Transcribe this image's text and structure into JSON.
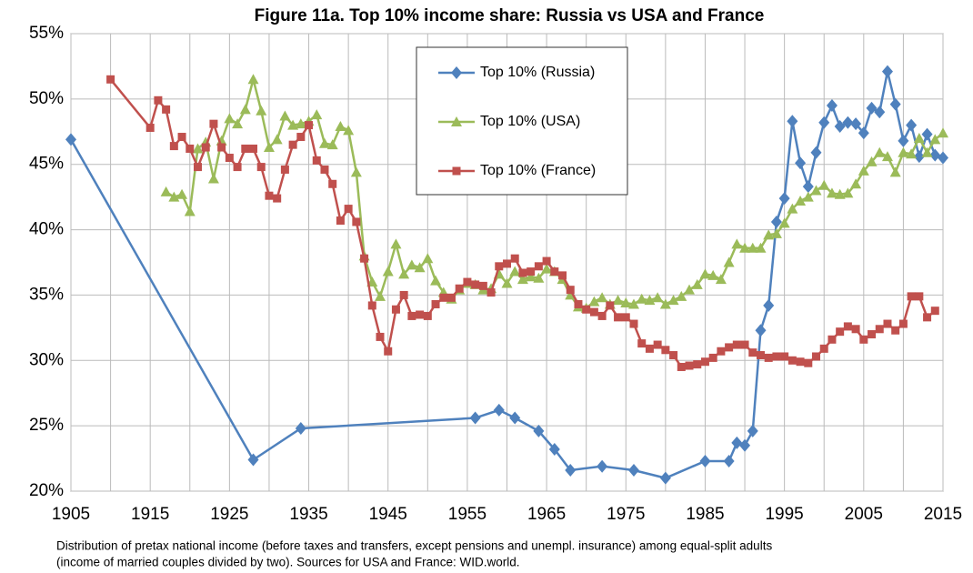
{
  "chart_data": {
    "type": "line",
    "title": "Figure 11a. Top 10% income share: Russia vs USA and France",
    "notes": [
      "Distribution of pretax national income (before taxes and transfers, except pensions and unempl. insurance) among equal-split adults",
      "(income of married couples divided by two). Sources for USA and France: WID.world."
    ],
    "xlim": [
      1905,
      2015
    ],
    "xticks": [
      1905,
      1915,
      1925,
      1935,
      1945,
      1955,
      1965,
      1975,
      1985,
      1995,
      2005,
      2015
    ],
    "x_minor_ticks": [
      1910,
      1920,
      1930,
      1940,
      1950,
      1960,
      1970,
      1980,
      1990,
      2000,
      2010
    ],
    "ylim": [
      20,
      55
    ],
    "yticks": [
      {
        "value": 20,
        "label": "20%"
      },
      {
        "value": 25,
        "label": "25%"
      },
      {
        "value": 30,
        "label": "30%"
      },
      {
        "value": 35,
        "label": "35%"
      },
      {
        "value": 40,
        "label": "40%"
      },
      {
        "value": 45,
        "label": "45%"
      },
      {
        "value": 50,
        "label": "50%"
      },
      {
        "value": 55,
        "label": "55%"
      }
    ],
    "grid": true,
    "legend": "upper center",
    "series": [
      {
        "name": "Top 10% (Russia)",
        "color": "#4f81bd",
        "marker": "diamond",
        "x": [
          1905,
          1928,
          1934,
          1956,
          1959,
          1961,
          1964,
          1966,
          1968,
          1972,
          1976,
          1980,
          1985,
          1988,
          1989,
          1990,
          1991,
          1992,
          1993,
          1994,
          1995,
          1996,
          1997,
          1998,
          1999,
          2000,
          2001,
          2002,
          2003,
          2004,
          2005,
          2006,
          2007,
          2008,
          2009,
          2010,
          2011,
          2012,
          2013,
          2014,
          2015
        ],
        "values": [
          46.9,
          22.4,
          24.8,
          25.6,
          26.2,
          25.6,
          24.6,
          23.2,
          21.6,
          21.9,
          21.6,
          21.0,
          22.3,
          22.3,
          23.7,
          23.5,
          24.6,
          32.3,
          34.2,
          40.6,
          42.4,
          48.3,
          45.1,
          43.3,
          45.9,
          48.2,
          49.5,
          47.9,
          48.2,
          48.1,
          47.4,
          49.3,
          49.0,
          52.1,
          49.6,
          46.8,
          48.0,
          45.6,
          47.3,
          45.7,
          45.5
        ]
      },
      {
        "name": "Top 10% (USA)",
        "color": "#9bbb59",
        "marker": "triangle",
        "x": [
          1917,
          1918,
          1919,
          1920,
          1921,
          1922,
          1923,
          1924,
          1925,
          1926,
          1927,
          1928,
          1929,
          1930,
          1931,
          1932,
          1933,
          1934,
          1935,
          1936,
          1937,
          1938,
          1939,
          1940,
          1941,
          1942,
          1943,
          1944,
          1945,
          1946,
          1947,
          1948,
          1949,
          1950,
          1951,
          1952,
          1953,
          1954,
          1955,
          1956,
          1957,
          1958,
          1959,
          1960,
          1961,
          1962,
          1963,
          1964,
          1965,
          1966,
          1967,
          1968,
          1969,
          1970,
          1971,
          1972,
          1973,
          1974,
          1975,
          1976,
          1977,
          1978,
          1979,
          1980,
          1981,
          1982,
          1983,
          1984,
          1985,
          1986,
          1987,
          1988,
          1989,
          1990,
          1991,
          1992,
          1993,
          1994,
          1995,
          1996,
          1997,
          1998,
          1999,
          2000,
          2001,
          2002,
          2003,
          2004,
          2005,
          2006,
          2007,
          2008,
          2009,
          2010,
          2011,
          2012,
          2013,
          2014,
          2015
        ],
        "values": [
          42.9,
          42.5,
          42.7,
          41.4,
          46.2,
          46.7,
          43.9,
          46.8,
          48.5,
          48.1,
          49.2,
          51.5,
          49.1,
          46.3,
          46.9,
          48.7,
          48.0,
          48.1,
          48.3,
          48.8,
          46.6,
          46.5,
          47.9,
          47.6,
          44.4,
          38.0,
          36.0,
          34.9,
          36.8,
          38.9,
          36.6,
          37.3,
          37.1,
          37.8,
          36.1,
          35.2,
          34.7,
          35.4,
          35.9,
          35.8,
          35.4,
          35.5,
          36.6,
          35.9,
          36.8,
          36.2,
          36.4,
          36.3,
          37.0,
          36.8,
          36.2,
          35.0,
          34.1,
          34.0,
          34.5,
          34.8,
          34.3,
          34.6,
          34.4,
          34.3,
          34.7,
          34.6,
          34.8,
          34.3,
          34.6,
          34.9,
          35.4,
          35.8,
          36.6,
          36.5,
          36.2,
          37.5,
          38.9,
          38.6,
          38.6,
          38.6,
          39.6,
          39.7,
          40.5,
          41.6,
          42.2,
          42.5,
          43.0,
          43.4,
          42.8,
          42.7,
          42.8,
          43.5,
          44.5,
          45.2,
          45.9,
          45.6,
          44.4,
          45.9,
          45.8,
          47.0,
          45.9,
          46.9,
          47.4
        ]
      },
      {
        "name": "Top 10% (France)",
        "color": "#c0504d",
        "marker": "square",
        "x": [
          1910,
          1915,
          1916,
          1917,
          1918,
          1919,
          1920,
          1921,
          1922,
          1923,
          1924,
          1925,
          1926,
          1927,
          1928,
          1929,
          1930,
          1931,
          1932,
          1933,
          1934,
          1935,
          1936,
          1937,
          1938,
          1939,
          1940,
          1941,
          1942,
          1943,
          1944,
          1945,
          1946,
          1947,
          1948,
          1949,
          1950,
          1951,
          1952,
          1953,
          1954,
          1955,
          1956,
          1957,
          1958,
          1959,
          1960,
          1961,
          1962,
          1963,
          1964,
          1965,
          1966,
          1967,
          1968,
          1969,
          1970,
          1971,
          1972,
          1973,
          1974,
          1975,
          1976,
          1977,
          1978,
          1979,
          1980,
          1981,
          1982,
          1983,
          1984,
          1985,
          1986,
          1987,
          1988,
          1989,
          1990,
          1991,
          1992,
          1993,
          1994,
          1995,
          1996,
          1997,
          1998,
          1999,
          2000,
          2001,
          2002,
          2003,
          2004,
          2005,
          2006,
          2007,
          2008,
          2009,
          2010,
          2011,
          2012,
          2013,
          2014
        ],
        "values": [
          51.5,
          47.8,
          49.9,
          49.2,
          46.4,
          47.1,
          46.2,
          44.8,
          46.3,
          48.1,
          46.3,
          45.5,
          44.8,
          46.2,
          46.2,
          44.8,
          42.6,
          42.4,
          44.6,
          46.5,
          47.1,
          48.0,
          45.3,
          44.6,
          43.5,
          40.7,
          41.6,
          40.6,
          37.8,
          34.2,
          31.8,
          30.7,
          33.9,
          35.0,
          33.4,
          33.5,
          33.4,
          34.3,
          34.8,
          34.8,
          35.5,
          36.0,
          35.8,
          35.7,
          35.2,
          37.2,
          37.4,
          37.8,
          36.7,
          36.8,
          37.2,
          37.6,
          36.8,
          36.5,
          35.4,
          34.3,
          33.9,
          33.7,
          33.4,
          34.2,
          33.3,
          33.3,
          32.8,
          31.3,
          30.9,
          31.2,
          30.8,
          30.4,
          29.5,
          29.6,
          29.7,
          29.9,
          30.2,
          30.7,
          31.0,
          31.2,
          31.2,
          30.6,
          30.4,
          30.2,
          30.3,
          30.3,
          30.0,
          29.9,
          29.8,
          30.3,
          30.9,
          31.6,
          32.2,
          32.6,
          32.4,
          31.6,
          32.0,
          32.4,
          32.8,
          32.3,
          32.8,
          34.9,
          34.9,
          33.3,
          33.8
        ]
      }
    ]
  }
}
